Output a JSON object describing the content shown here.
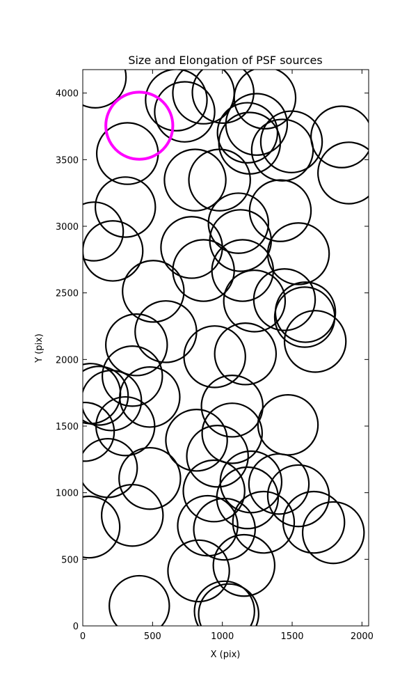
{
  "chart_data": {
    "type": "scatter",
    "title": "Size and Elongation of PSF sources",
    "xlabel": "X (pix)",
    "ylabel": "Y (pix)",
    "xlim": [
      0,
      2048
    ],
    "ylim": [
      0,
      4176
    ],
    "xticks": [
      0,
      500,
      1000,
      1500,
      2000
    ],
    "yticks": [
      0,
      500,
      1000,
      1500,
      2000,
      2500,
      3000,
      3500,
      4000
    ],
    "series": [
      {
        "color": "#000000",
        "x": [
          90,
          670,
          730,
          865,
          1005,
          1245,
          1305,
          1180,
          1195,
          1430,
          1495,
          1855,
          1905,
          320,
          805,
          980,
          1415,
          305,
          80,
          215,
          1115,
          1130,
          780,
          1545,
          865,
          1145,
          505,
          1230,
          1445,
          1595,
          1590,
          1665,
          595,
          385,
          945,
          1165,
          355,
          115,
          55,
          205,
          480,
          1070,
          305,
          15,
          1470,
          1070,
          815,
          965,
          180,
          480,
          1205,
          1405,
          940,
          1180,
          1545,
          45,
          355,
          895,
          1015,
          1295,
          1655,
          1795,
          830,
          1155,
          405,
          1015,
          1045
        ],
        "y": [
          4120,
          3948,
          3859,
          4000,
          4005,
          3765,
          3963,
          3702,
          3624,
          3572,
          3634,
          3671,
          3400,
          3546,
          3347,
          3347,
          3117,
          3144,
          2961,
          2815,
          3023,
          2893,
          2841,
          2794,
          2668,
          2668,
          2512,
          2439,
          2449,
          2355,
          2318,
          2136,
          2209,
          2110,
          2021,
          2042,
          1875,
          1728,
          1744,
          1692,
          1718,
          1650,
          1499,
          1457,
          1509,
          1446,
          1394,
          1274,
          1185,
          1107,
          1081,
          1065,
          1013,
          961,
          977,
          742,
          830,
          752,
          726,
          778,
          778,
          700,
          413,
          454,
          151,
          110,
          89
        ],
        "sizes": [
          440,
          440,
          430,
          440,
          440,
          440,
          440,
          430,
          440,
          440,
          440,
          440,
          440,
          440,
          440,
          440,
          440,
          430,
          420,
          430,
          430,
          440,
          440,
          440,
          440,
          440,
          440,
          440,
          440,
          430,
          430,
          440,
          440,
          440,
          440,
          440,
          430,
          420,
          430,
          430,
          430,
          440,
          420,
          420,
          430,
          430,
          440,
          440,
          420,
          440,
          440,
          430,
          440,
          440,
          440,
          440,
          440,
          430,
          440,
          440,
          440,
          440,
          440,
          440,
          430,
          430,
          430
        ]
      },
      {
        "color": "#ff00ff",
        "x": [
          405
        ],
        "y": [
          3755
        ],
        "sizes": [
          480
        ]
      }
    ]
  }
}
